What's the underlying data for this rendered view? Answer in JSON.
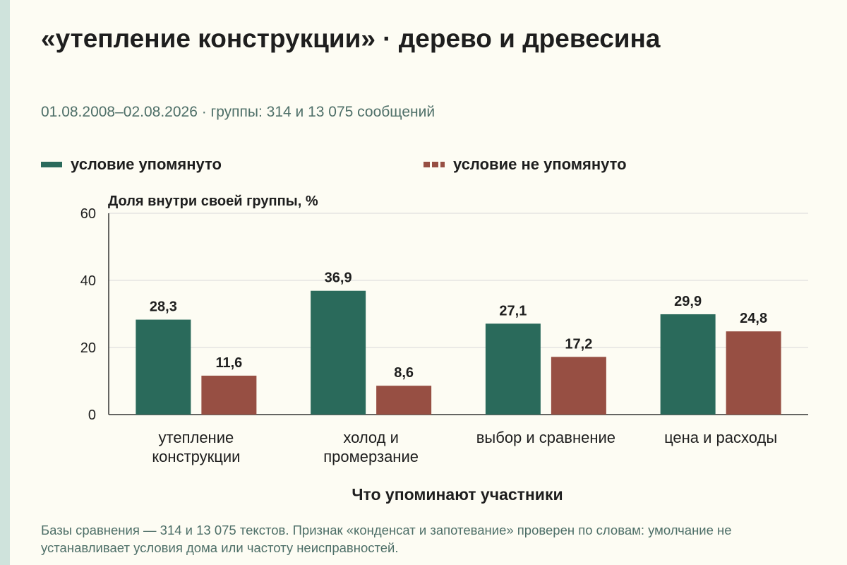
{
  "header": {
    "title": "«утепление конструкции» · дерево и древесина",
    "subtitle": "01.08.2008–02.08.2026 · группы: 314 и 13 075 сообщений"
  },
  "colors": {
    "series_a": "#2a6a5b",
    "series_b": "#974f43",
    "grid": "#d9d9d9",
    "axis": "#333333"
  },
  "chart_data": {
    "type": "bar",
    "categories": [
      [
        "утепление",
        "конструкции"
      ],
      [
        "холод и",
        "промерзание"
      ],
      [
        "выбор и сравнение"
      ],
      [
        "цена и расходы"
      ]
    ],
    "series": [
      {
        "name": "условие упомянуто",
        "values": [
          28.3,
          36.9,
          27.1,
          29.9
        ],
        "labels": [
          "28,3",
          "36,9",
          "27,1",
          "29,9"
        ]
      },
      {
        "name": "условие не упомянуто",
        "values": [
          11.6,
          8.6,
          17.2,
          24.8
        ],
        "labels": [
          "11,6",
          "8,6",
          "17,2",
          "24,8"
        ]
      }
    ],
    "ylabel": "Доля внутри своей группы, %",
    "xlabel": "Что упоминают участники",
    "ylim": [
      0,
      60
    ],
    "yticks": [
      0,
      20,
      40,
      60
    ],
    "grid": true,
    "legend": "top-left"
  },
  "footnote": "Базы сравнения — 314 и 13 075 текстов. Признак «конденсат и запотевание» проверен по словам: умолчание не устанавливает условия дома или частоту неисправностей."
}
